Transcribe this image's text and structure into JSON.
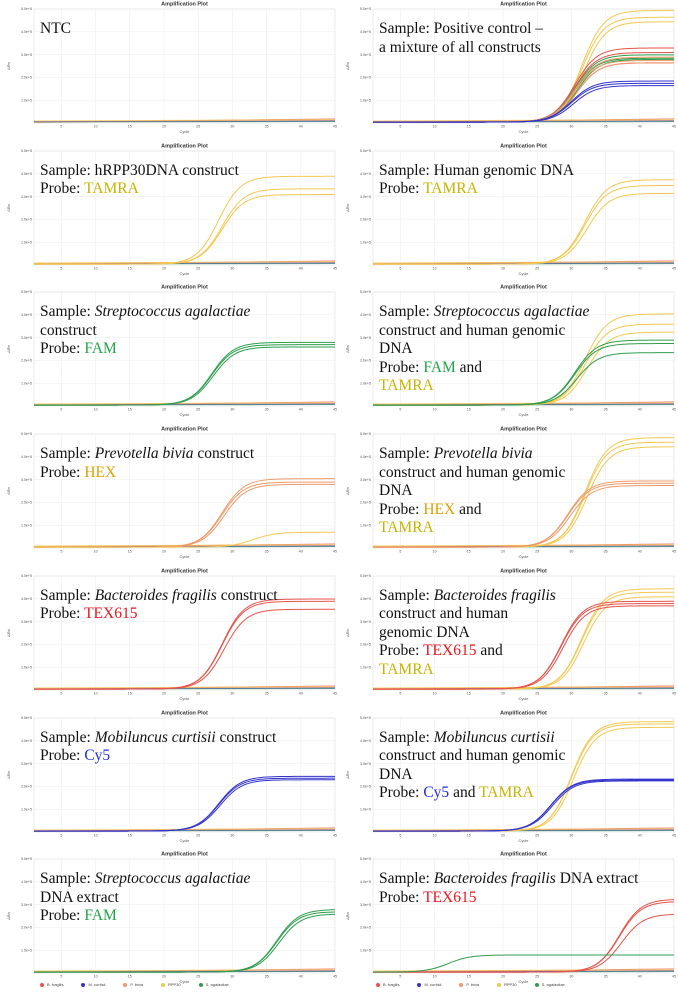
{
  "colors": {
    "B. fragilis": "#e5534b",
    "M. curtisii": "#3333cc",
    "P. bivia": "#ef9a6a",
    "RPP30": "#f3c850",
    "S. agalactiae": "#2e9e4f",
    "FAM": "#22a34a",
    "TAMRA": "#c8b400",
    "HEX": "#d9a000",
    "TEX615": "#e8141c",
    "Cy5": "#1f2ee0"
  },
  "legend": [
    {
      "name": "B. fragilis",
      "color": "#e5534b"
    },
    {
      "name": "M. curtisii",
      "color": "#3333cc"
    },
    {
      "name": "P. bivia",
      "color": "#ef9a6a"
    },
    {
      "name": "RPP30",
      "color": "#f3c850"
    },
    {
      "name": "S. agalactiae",
      "color": "#2e9e4f"
    }
  ],
  "chart_data": [
    {
      "type": "line",
      "title": "Amplification Plot",
      "xlabel": "Cycle",
      "ylabel": "ΔRn",
      "xlim": [
        1,
        45
      ],
      "ylim": [
        0,
        500000
      ],
      "x_ticks": [
        "5",
        "10",
        "15",
        "20",
        "25",
        "30",
        "35",
        "40",
        "45"
      ],
      "y_ticks": [
        "1.0e+5",
        "2.0e+5",
        "3.0e+5",
        "4.0e+5",
        "5.0e+5"
      ],
      "grid": true,
      "annotation": [
        {
          "t": "NTC"
        }
      ],
      "series": []
    },
    {
      "type": "line",
      "title": "Amplification Plot",
      "xlabel": "Cycle",
      "ylabel": "ΔRn",
      "xlim": [
        1,
        45
      ],
      "ylim": [
        0,
        500000
      ],
      "x_ticks": [
        "5",
        "10",
        "15",
        "20",
        "25",
        "30",
        "35",
        "40",
        "45"
      ],
      "y_ticks": [
        "1.0e+5",
        "2.0e+5",
        "3.0e+5",
        "4.0e+5",
        "5.0e+5"
      ],
      "grid": true,
      "annotation": [
        {
          "t": "Sample: Positive control –"
        },
        {
          "t": "a mixture of all constructs"
        }
      ],
      "series": [
        {
          "name": "RPP30",
          "ct": 31.5,
          "plateau": 490000
        },
        {
          "name": "RPP30",
          "ct": 31.5,
          "plateau": 460000
        },
        {
          "name": "RPP30",
          "ct": 31.8,
          "plateau": 440000
        },
        {
          "name": "B. fragilis",
          "ct": 30.5,
          "plateau": 325000
        },
        {
          "name": "B. fragilis",
          "ct": 30.5,
          "plateau": 305000
        },
        {
          "name": "B. fragilis",
          "ct": 30.8,
          "plateau": 260000
        },
        {
          "name": "S. agalactiae",
          "ct": 30.5,
          "plateau": 295000
        },
        {
          "name": "S. agalactiae",
          "ct": 30.5,
          "plateau": 280000
        },
        {
          "name": "S. agalactiae",
          "ct": 30.8,
          "plateau": 275000
        },
        {
          "name": "P. bivia",
          "ct": 30.5,
          "plateau": 285000
        },
        {
          "name": "P. bivia",
          "ct": 30.5,
          "plateau": 270000
        },
        {
          "name": "P. bivia",
          "ct": 30.8,
          "plateau": 260000
        },
        {
          "name": "M. curtisii",
          "ct": 30,
          "plateau": 180000
        },
        {
          "name": "M. curtisii",
          "ct": 30,
          "plateau": 170000
        },
        {
          "name": "M. curtisii",
          "ct": 30.3,
          "plateau": 160000
        }
      ]
    },
    {
      "type": "line",
      "title": "Amplification Plot",
      "xlabel": "Cycle",
      "ylabel": "ΔRn",
      "xlim": [
        1,
        45
      ],
      "ylim": [
        0,
        500000
      ],
      "x_ticks": [
        "5",
        "10",
        "15",
        "20",
        "25",
        "30",
        "35",
        "40",
        "45"
      ],
      "y_ticks": [
        "1.0e+5",
        "2.0e+5",
        "3.0e+5",
        "4.0e+5",
        "5.0e+5"
      ],
      "grid": true,
      "annotation": [
        {
          "t": "Sample: hRPP30DNA construct"
        },
        {
          "t": "Probe: ",
          "c": "TAMRA"
        }
      ],
      "series": [
        {
          "name": "RPP30",
          "ct": 28,
          "plateau": 385000
        },
        {
          "name": "RPP30",
          "ct": 28.5,
          "plateau": 330000
        },
        {
          "name": "RPP30",
          "ct": 28.5,
          "plateau": 305000
        }
      ]
    },
    {
      "type": "line",
      "title": "Amplification Plot",
      "xlabel": "Cycle",
      "ylabel": "ΔRn",
      "xlim": [
        1,
        45
      ],
      "ylim": [
        0,
        500000
      ],
      "x_ticks": [
        "5",
        "10",
        "15",
        "20",
        "25",
        "30",
        "35",
        "40",
        "45"
      ],
      "y_ticks": [
        "1.0e+5",
        "2.0e+5",
        "3.0e+5",
        "4.0e+5",
        "5.0e+5"
      ],
      "grid": true,
      "annotation": [
        {
          "t": "Sample: Human genomic DNA"
        },
        {
          "t": "Probe: ",
          "c": "TAMRA"
        }
      ],
      "series": [
        {
          "name": "RPP30",
          "ct": 32,
          "plateau": 370000
        },
        {
          "name": "RPP30",
          "ct": 32,
          "plateau": 345000
        },
        {
          "name": "RPP30",
          "ct": 32.3,
          "plateau": 310000
        }
      ]
    },
    {
      "type": "line",
      "title": "Amplification Plot",
      "xlabel": "Cycle",
      "ylabel": "ΔRn",
      "xlim": [
        1,
        45
      ],
      "ylim": [
        0,
        500000
      ],
      "x_ticks": [
        "5",
        "10",
        "15",
        "20",
        "25",
        "30",
        "35",
        "40",
        "45"
      ],
      "y_ticks": [
        "1.0e+5",
        "2.0e+5",
        "3.0e+5",
        "4.0e+5",
        "5.0e+5"
      ],
      "grid": true,
      "annotation": [
        {
          "t": "Sample: ",
          "i": "Streptococcus agalactiae"
        },
        {
          "t": "construct"
        },
        {
          "t": "Probe: ",
          "c": "FAM"
        }
      ],
      "series": [
        {
          "name": "S. agalactiae",
          "ct": 27,
          "plateau": 275000
        },
        {
          "name": "S. agalactiae",
          "ct": 27,
          "plateau": 265000
        },
        {
          "name": "S. agalactiae",
          "ct": 27.2,
          "plateau": 255000
        }
      ]
    },
    {
      "type": "line",
      "title": "Amplification Plot",
      "xlabel": "Cycle",
      "ylabel": "ΔRn",
      "xlim": [
        1,
        45
      ],
      "ylim": [
        0,
        500000
      ],
      "x_ticks": [
        "5",
        "10",
        "15",
        "20",
        "25",
        "30",
        "35",
        "40",
        "45"
      ],
      "y_ticks": [
        "1.0e+5",
        "2.0e+5",
        "3.0e+5",
        "4.0e+5",
        "5.0e+5"
      ],
      "grid": true,
      "annotation": [
        {
          "t": "Sample: ",
          "i": "Streptococcus agalactiae"
        },
        {
          "t": "construct and human genomic"
        },
        {
          "t": "DNA"
        },
        {
          "t": "Probe: ",
          "c": "FAM",
          "t2": " and"
        },
        {
          "t": "",
          "c": "TAMRA"
        }
      ],
      "series": [
        {
          "name": "RPP30",
          "ct": 32,
          "plateau": 400000
        },
        {
          "name": "RPP30",
          "ct": 32,
          "plateau": 355000
        },
        {
          "name": "RPP30",
          "ct": 32.3,
          "plateau": 320000
        },
        {
          "name": "S. agalactiae",
          "ct": 30.5,
          "plateau": 285000
        },
        {
          "name": "S. agalactiae",
          "ct": 30.5,
          "plateau": 270000
        },
        {
          "name": "S. agalactiae",
          "ct": 30.8,
          "plateau": 230000
        }
      ]
    },
    {
      "type": "line",
      "title": "Amplification Plot",
      "xlabel": "Cycle",
      "ylabel": "ΔRn",
      "xlim": [
        1,
        45
      ],
      "ylim": [
        0,
        500000
      ],
      "x_ticks": [
        "5",
        "10",
        "15",
        "20",
        "25",
        "30",
        "35",
        "40",
        "45"
      ],
      "y_ticks": [
        "1.0e+5",
        "2.0e+5",
        "3.0e+5",
        "4.0e+5",
        "5.0e+5"
      ],
      "grid": true,
      "annotation": [
        {
          "t": "Sample: ",
          "i": "Prevotella bivia",
          "t2": " construct"
        },
        {
          "t": "Probe: ",
          "c": "HEX"
        }
      ],
      "series": [
        {
          "name": "P. bivia",
          "ct": 28.5,
          "plateau": 300000
        },
        {
          "name": "P. bivia",
          "ct": 28.5,
          "plateau": 285000
        },
        {
          "name": "P. bivia",
          "ct": 28.8,
          "plateau": 275000
        },
        {
          "name": "RPP30",
          "ct": 33,
          "plateau": 65000
        }
      ]
    },
    {
      "type": "line",
      "title": "Amplification Plot",
      "xlabel": "Cycle",
      "ylabel": "ΔRn",
      "xlim": [
        1,
        45
      ],
      "ylim": [
        0,
        500000
      ],
      "x_ticks": [
        "5",
        "10",
        "15",
        "20",
        "25",
        "30",
        "35",
        "40",
        "45"
      ],
      "y_ticks": [
        "1.0e+5",
        "2.0e+5",
        "3.0e+5",
        "4.0e+5",
        "5.0e+5"
      ],
      "grid": true,
      "annotation": [
        {
          "t": "Sample: ",
          "i": "Prevotella bivia"
        },
        {
          "t": "construct and human genomic"
        },
        {
          "t": "DNA"
        },
        {
          "t": "Probe: ",
          "c": "HEX",
          "t2": " and"
        },
        {
          "t": "",
          "c": "TAMRA"
        }
      ],
      "series": [
        {
          "name": "RPP30",
          "ct": 32,
          "plateau": 480000
        },
        {
          "name": "RPP30",
          "ct": 32,
          "plateau": 460000
        },
        {
          "name": "RPP30",
          "ct": 32.3,
          "plateau": 440000
        },
        {
          "name": "P. bivia",
          "ct": 29.5,
          "plateau": 290000
        },
        {
          "name": "P. bivia",
          "ct": 29.5,
          "plateau": 280000
        },
        {
          "name": "P. bivia",
          "ct": 29.8,
          "plateau": 270000
        }
      ]
    },
    {
      "type": "line",
      "title": "Amplification Plot",
      "xlabel": "Cycle",
      "ylabel": "ΔRn",
      "xlim": [
        1,
        45
      ],
      "ylim": [
        0,
        500000
      ],
      "x_ticks": [
        "5",
        "10",
        "15",
        "20",
        "25",
        "30",
        "35",
        "40",
        "45"
      ],
      "y_ticks": [
        "1.0e+5",
        "2.0e+5",
        "3.0e+5",
        "4.0e+5",
        "5.0e+5"
      ],
      "grid": true,
      "annotation": [
        {
          "t": "Sample: ",
          "i": "Bacteroides fragilis",
          "t2": " construct"
        },
        {
          "t": "Probe: ",
          "c": "TEX615"
        }
      ],
      "series": [
        {
          "name": "B. fragilis",
          "ct": 28.5,
          "plateau": 395000
        },
        {
          "name": "B. fragilis",
          "ct": 28.5,
          "plateau": 385000
        },
        {
          "name": "B. fragilis",
          "ct": 28.8,
          "plateau": 350000
        }
      ]
    },
    {
      "type": "line",
      "title": "Amplification Plot",
      "xlabel": "Cycle",
      "ylabel": "ΔRn",
      "xlim": [
        1,
        45
      ],
      "ylim": [
        0,
        500000
      ],
      "x_ticks": [
        "5",
        "10",
        "15",
        "20",
        "25",
        "30",
        "35",
        "40",
        "45"
      ],
      "y_ticks": [
        "1.0e+5",
        "2.0e+5",
        "3.0e+5",
        "4.0e+5",
        "5.0e+5"
      ],
      "grid": true,
      "annotation": [
        {
          "t": "Sample: ",
          "i": "Bacteroides fragilis"
        },
        {
          "t": "construct and human"
        },
        {
          "t": "genomic DNA"
        },
        {
          "t": "Probe: ",
          "c": "TEX615",
          "t2": " and"
        },
        {
          "t": "",
          "c": "TAMRA"
        }
      ],
      "series": [
        {
          "name": "RPP30",
          "ct": 31.5,
          "plateau": 440000
        },
        {
          "name": "RPP30",
          "ct": 31.5,
          "plateau": 425000
        },
        {
          "name": "RPP30",
          "ct": 31.8,
          "plateau": 405000
        },
        {
          "name": "B. fragilis",
          "ct": 28.5,
          "plateau": 385000
        },
        {
          "name": "B. fragilis",
          "ct": 28.5,
          "plateau": 375000
        },
        {
          "name": "B. fragilis",
          "ct": 28.8,
          "plateau": 365000
        }
      ]
    },
    {
      "type": "line",
      "title": "Amplification Plot",
      "xlabel": "Cycle",
      "ylabel": "ΔRn",
      "xlim": [
        1,
        45
      ],
      "ylim": [
        0,
        500000
      ],
      "x_ticks": [
        "5",
        "10",
        "15",
        "20",
        "25",
        "30",
        "35",
        "40",
        "45"
      ],
      "y_ticks": [
        "1.0e+5",
        "2.0e+5",
        "3.0e+5",
        "4.0e+5",
        "5.0e+5"
      ],
      "grid": true,
      "annotation": [
        {
          "t": "Sample: ",
          "i": "Mobiluncus curtisii",
          "t2": " construct"
        },
        {
          "t": "Probe: ",
          "c": "Cy5"
        }
      ],
      "series": [
        {
          "name": "M. curtisii",
          "ct": 28,
          "plateau": 240000
        },
        {
          "name": "M. curtisii",
          "ct": 28,
          "plateau": 232000
        },
        {
          "name": "M. curtisii",
          "ct": 28.2,
          "plateau": 225000
        }
      ]
    },
    {
      "type": "line",
      "title": "Amplification Plot",
      "xlabel": "Cycle",
      "ylabel": "ΔRn",
      "xlim": [
        1,
        45
      ],
      "ylim": [
        0,
        500000
      ],
      "x_ticks": [
        "5",
        "10",
        "15",
        "20",
        "25",
        "30",
        "35",
        "40",
        "45"
      ],
      "y_ticks": [
        "1.0e+5",
        "2.0e+5",
        "3.0e+5",
        "4.0e+5",
        "5.0e+5"
      ],
      "grid": true,
      "annotation": [
        {
          "t": "Sample: ",
          "i": "Mobiluncus curtisii"
        },
        {
          "t": "construct and human genomic"
        },
        {
          "t": "DNA"
        },
        {
          "t": "Probe: ",
          "c": "Cy5",
          "t2": " and ",
          "c2": "TAMRA"
        }
      ],
      "series": [
        {
          "name": "RPP30",
          "ct": 30,
          "plateau": 480000
        },
        {
          "name": "RPP30",
          "ct": 30,
          "plateau": 470000
        },
        {
          "name": "RPP30",
          "ct": 30.3,
          "plateau": 455000
        },
        {
          "name": "M. curtisii",
          "ct": 27,
          "plateau": 228000
        },
        {
          "name": "M. curtisii",
          "ct": 27,
          "plateau": 224000
        },
        {
          "name": "M. curtisii",
          "ct": 27.2,
          "plateau": 220000
        }
      ]
    },
    {
      "type": "line",
      "title": "Amplification Plot",
      "xlabel": "Cycle",
      "ylabel": "ΔRn",
      "xlim": [
        1,
        45
      ],
      "ylim": [
        0,
        500000
      ],
      "x_ticks": [
        "5",
        "10",
        "15",
        "20",
        "25",
        "30",
        "35",
        "40",
        "45"
      ],
      "y_ticks": [
        "1.0e+5",
        "2.0e+5",
        "3.0e+5",
        "4.0e+5",
        "5.0e+5"
      ],
      "grid": true,
      "annotation": [
        {
          "t": "Sample: ",
          "i": "Streptococcus agalactiae"
        },
        {
          "t": "DNA extract"
        },
        {
          "t": "Probe: ",
          "c": "FAM"
        }
      ],
      "series": [
        {
          "name": "S. agalactiae",
          "ct": 36.5,
          "plateau": 275000
        },
        {
          "name": "S. agalactiae",
          "ct": 36.5,
          "plateau": 265000
        },
        {
          "name": "S. agalactiae",
          "ct": 36.8,
          "plateau": 255000
        }
      ]
    },
    {
      "type": "line",
      "title": "Amplification Plot",
      "xlabel": "Cycle",
      "ylabel": "ΔRn",
      "xlim": [
        1,
        45
      ],
      "ylim": [
        0,
        500000
      ],
      "x_ticks": [
        "5",
        "10",
        "15",
        "20",
        "25",
        "30",
        "35",
        "40",
        "45"
      ],
      "y_ticks": [
        "1.0e+5",
        "2.0e+5",
        "3.0e+5",
        "4.0e+5",
        "5.0e+5"
      ],
      "grid": true,
      "annotation": [
        {
          "t": "Sample: ",
          "i": "Bacteroides fragilis",
          "t2": " DNA extract"
        },
        {
          "t": "Probe: ",
          "c": "TEX615"
        }
      ],
      "series": [
        {
          "name": "B. fragilis",
          "ct": 37,
          "plateau": 320000
        },
        {
          "name": "B. fragilis",
          "ct": 37,
          "plateau": 310000
        },
        {
          "name": "B. fragilis",
          "ct": 37.3,
          "plateau": 255000
        },
        {
          "name": "S. agalactiae",
          "ct": 12,
          "plateau": 75000
        }
      ]
    }
  ]
}
